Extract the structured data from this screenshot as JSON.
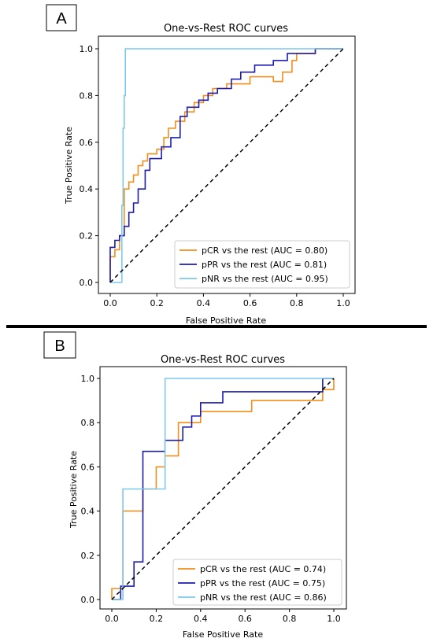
{
  "chart_data": [
    {
      "panel_label": "A",
      "type": "line",
      "title": "One-vs-Rest ROC curves",
      "xlabel": "False Positive Rate",
      "ylabel": "True Positive Rate",
      "xlim": [
        0,
        1
      ],
      "ylim": [
        0,
        1
      ],
      "xticks": [
        "0.0",
        "0.2",
        "0.4",
        "0.6",
        "0.8",
        "1.0"
      ],
      "yticks": [
        "0.0",
        "0.2",
        "0.4",
        "0.6",
        "0.8",
        "1.0"
      ],
      "grid": false,
      "legend_position": "lower-right",
      "diagonal": true,
      "series": [
        {
          "name": "pCR vs the rest (AUC = 0.80)",
          "color": "#f28e1c",
          "x": [
            0,
            0,
            0.02,
            0.02,
            0.04,
            0.04,
            0.06,
            0.06,
            0.08,
            0.08,
            0.1,
            0.1,
            0.12,
            0.12,
            0.14,
            0.14,
            0.16,
            0.16,
            0.2,
            0.2,
            0.23,
            0.23,
            0.25,
            0.25,
            0.28,
            0.28,
            0.32,
            0.32,
            0.36,
            0.36,
            0.4,
            0.4,
            0.44,
            0.44,
            0.5,
            0.5,
            0.6,
            0.6,
            0.7,
            0.7,
            0.74,
            0.74,
            0.78,
            0.78,
            0.8,
            0.8,
            0.88,
            0.88,
            1.0
          ],
          "y": [
            0,
            0.11,
            0.11,
            0.14,
            0.14,
            0.2,
            0.2,
            0.4,
            0.4,
            0.43,
            0.43,
            0.46,
            0.46,
            0.5,
            0.5,
            0.52,
            0.52,
            0.55,
            0.55,
            0.57,
            0.57,
            0.62,
            0.62,
            0.66,
            0.66,
            0.69,
            0.69,
            0.73,
            0.73,
            0.77,
            0.77,
            0.8,
            0.8,
            0.83,
            0.83,
            0.85,
            0.85,
            0.88,
            0.88,
            0.86,
            0.86,
            0.9,
            0.9,
            0.95,
            0.95,
            0.98,
            0.98,
            1.0,
            1.0
          ]
        },
        {
          "name": "pPR vs the rest (AUC = 0.81)",
          "color": "#1c1cb0",
          "x": [
            0,
            0,
            0.02,
            0.02,
            0.04,
            0.04,
            0.06,
            0.06,
            0.08,
            0.08,
            0.1,
            0.1,
            0.12,
            0.12,
            0.15,
            0.15,
            0.17,
            0.17,
            0.22,
            0.22,
            0.26,
            0.26,
            0.3,
            0.3,
            0.33,
            0.33,
            0.38,
            0.38,
            0.42,
            0.42,
            0.46,
            0.46,
            0.52,
            0.52,
            0.56,
            0.56,
            0.62,
            0.62,
            0.7,
            0.7,
            0.76,
            0.76,
            0.88,
            0.88,
            1.0
          ],
          "y": [
            0,
            0.15,
            0.15,
            0.18,
            0.18,
            0.2,
            0.2,
            0.24,
            0.24,
            0.3,
            0.3,
            0.34,
            0.34,
            0.4,
            0.4,
            0.48,
            0.48,
            0.53,
            0.53,
            0.58,
            0.58,
            0.62,
            0.62,
            0.71,
            0.71,
            0.75,
            0.75,
            0.78,
            0.78,
            0.81,
            0.81,
            0.83,
            0.83,
            0.87,
            0.87,
            0.9,
            0.9,
            0.93,
            0.93,
            0.95,
            0.95,
            0.98,
            0.98,
            1.0,
            1.0
          ]
        },
        {
          "name": "pNR vs the rest (AUC = 0.95)",
          "color": "#7cc8ee",
          "x": [
            0,
            0.05,
            0.05,
            0.055,
            0.055,
            0.06,
            0.06,
            0.065,
            0.065,
            1.0
          ],
          "y": [
            0,
            0,
            0.33,
            0.33,
            0.66,
            0.66,
            0.8,
            0.8,
            1.0,
            1.0
          ]
        }
      ]
    },
    {
      "panel_label": "B",
      "type": "line",
      "title": "One-vs-Rest ROC curves",
      "xlabel": "False Positive Rate",
      "ylabel": "True Positive Rate",
      "xlim": [
        0,
        1
      ],
      "ylim": [
        0,
        1
      ],
      "xticks": [
        "0.0",
        "0.2",
        "0.4",
        "0.6",
        "0.8",
        "1.0"
      ],
      "yticks": [
        "0.0",
        "0.2",
        "0.4",
        "0.6",
        "0.8",
        "1.0"
      ],
      "grid": false,
      "legend_position": "lower-right",
      "diagonal": true,
      "series": [
        {
          "name": "pCR vs the rest (AUC = 0.74)",
          "color": "#f28e1c",
          "x": [
            0,
            0,
            0.05,
            0.05,
            0.14,
            0.14,
            0.2,
            0.2,
            0.24,
            0.24,
            0.3,
            0.3,
            0.4,
            0.4,
            0.63,
            0.63,
            0.95,
            0.95,
            1.0,
            1.0
          ],
          "y": [
            0,
            0.05,
            0.05,
            0.4,
            0.4,
            0.5,
            0.5,
            0.6,
            0.6,
            0.65,
            0.65,
            0.8,
            0.8,
            0.85,
            0.85,
            0.9,
            0.9,
            0.95,
            0.95,
            1.0
          ]
        },
        {
          "name": "pPR vs the rest (AUC = 0.75)",
          "color": "#1c1cb0",
          "x": [
            0,
            0.04,
            0.04,
            0.05,
            0.05,
            0.1,
            0.1,
            0.14,
            0.14,
            0.24,
            0.24,
            0.32,
            0.32,
            0.36,
            0.36,
            0.4,
            0.4,
            0.5,
            0.5,
            0.95,
            0.95,
            1.0
          ],
          "y": [
            0,
            0,
            0.06,
            0.06,
            0.06,
            0.06,
            0.17,
            0.17,
            0.67,
            0.67,
            0.72,
            0.72,
            0.78,
            0.78,
            0.83,
            0.83,
            0.89,
            0.89,
            0.94,
            0.94,
            1.0,
            1.0
          ]
        },
        {
          "name": "pNR vs the rest (AUC = 0.86)",
          "color": "#7cc8ee",
          "x": [
            0,
            0.05,
            0.05,
            0.24,
            0.24,
            0.95,
            0.95,
            1.0
          ],
          "y": [
            0,
            0,
            0.5,
            0.5,
            1.0,
            1.0,
            1.0,
            1.0
          ]
        }
      ]
    }
  ]
}
